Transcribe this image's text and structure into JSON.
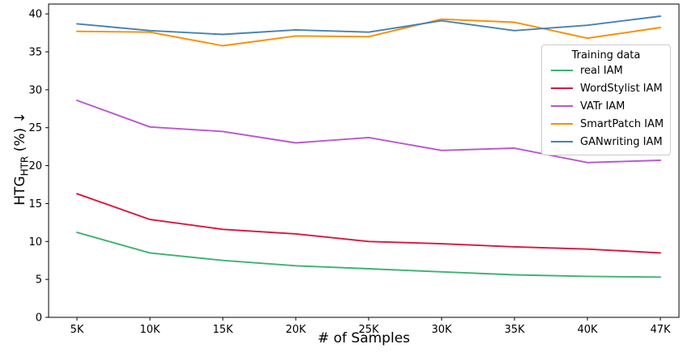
{
  "chart_data": {
    "type": "line",
    "title": "",
    "xlabel": "# of Samples",
    "ylabel": "HTG_HTR (%) ↓",
    "ylabel_parts": {
      "base": "HTG",
      "subscript": "HTR",
      "suffix": " (%) ↓"
    },
    "categories": [
      "5K",
      "10K",
      "15K",
      "20K",
      "25K",
      "30K",
      "35K",
      "40K",
      "47K"
    ],
    "series": [
      {
        "name": "real IAM",
        "color": "#3cb371",
        "values": [
          11.2,
          8.5,
          7.5,
          6.8,
          6.4,
          6.0,
          5.6,
          5.4,
          5.3
        ]
      },
      {
        "name": "WordStylist IAM",
        "color": "#dc143c",
        "values": [
          16.3,
          12.9,
          11.6,
          11.0,
          10.0,
          9.7,
          9.3,
          9.0,
          8.5
        ]
      },
      {
        "name": "VATr IAM",
        "color": "#ba55d3",
        "values": [
          28.6,
          25.1,
          24.5,
          23.0,
          23.7,
          22.0,
          22.3,
          20.4,
          20.7
        ]
      },
      {
        "name": "SmartPatch IAM",
        "color": "#ff8c00",
        "values": [
          37.7,
          37.6,
          35.8,
          37.1,
          37.0,
          39.3,
          38.9,
          36.8,
          38.2
        ]
      },
      {
        "name": "GANwriting IAM",
        "color": "#4682b4",
        "values": [
          38.7,
          37.8,
          37.3,
          37.9,
          37.6,
          39.1,
          37.8,
          38.5,
          39.7
        ]
      }
    ],
    "yticks": [
      0,
      5,
      10,
      15,
      20,
      25,
      30,
      35,
      40
    ],
    "ylim": [
      0,
      41.3
    ],
    "grid": false,
    "legend": {
      "title": "Training data",
      "position": "upper right"
    },
    "axis_color": "#000000"
  }
}
